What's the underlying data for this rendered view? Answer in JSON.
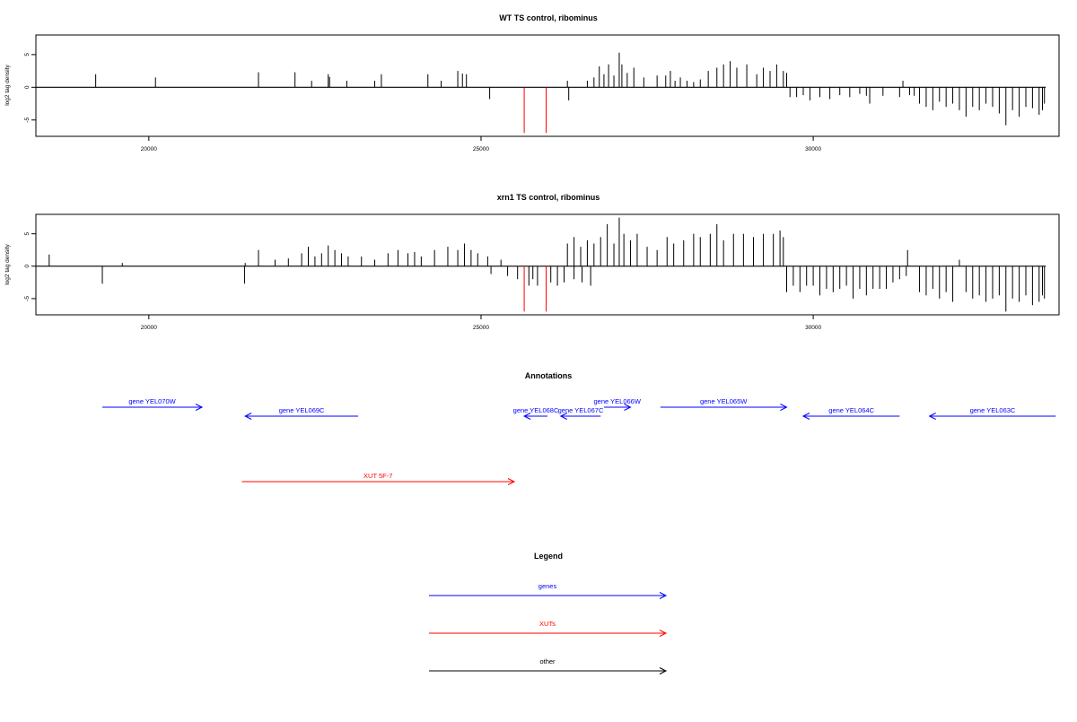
{
  "colors": {
    "gene": "#0000ff",
    "xut": "#ff0000",
    "other": "#000000",
    "positive": "#000000",
    "highlight": "#ff0000"
  },
  "chart_data": [
    {
      "type": "bar",
      "title": "WT TS control, ribominus",
      "ylabel": "log2 tag density",
      "xlim": [
        18300,
        33700
      ],
      "ylim": [
        -7.5,
        8
      ],
      "xticks": [
        20000,
        25000,
        30000
      ],
      "xtick_labels": [
        "20000",
        "25000",
        "30000"
      ],
      "yticks": [
        -5,
        0,
        5
      ],
      "ytick_labels": [
        "-5",
        "0",
        "5"
      ],
      "baseline": [
        18300,
        33500
      ],
      "bars": [
        [
          19200,
          2
        ],
        [
          20100,
          1.5
        ],
        [
          21650,
          2.3
        ],
        [
          22200,
          2.3
        ],
        [
          22450,
          1
        ],
        [
          22700,
          2
        ],
        [
          22720,
          1.6
        ],
        [
          22980,
          1
        ],
        [
          23400,
          1
        ],
        [
          23500,
          2
        ],
        [
          24200,
          2
        ],
        [
          24400,
          1
        ],
        [
          24650,
          2.5
        ],
        [
          24720,
          2.1
        ],
        [
          24780,
          2
        ],
        [
          25130,
          -1.8
        ],
        [
          26300,
          1
        ],
        [
          26320,
          -2
        ],
        [
          26600,
          1
        ],
        [
          26700,
          1.5
        ],
        [
          26780,
          3.2
        ],
        [
          26850,
          2
        ],
        [
          26920,
          3.5
        ],
        [
          27000,
          1.8
        ],
        [
          27080,
          5.3
        ],
        [
          27120,
          3.5
        ],
        [
          27200,
          2.2
        ],
        [
          27300,
          3
        ],
        [
          27450,
          1.5
        ],
        [
          27650,
          1.8
        ],
        [
          27780,
          1.8
        ],
        [
          27850,
          2.5
        ],
        [
          27920,
          1
        ],
        [
          28000,
          1.5
        ],
        [
          28100,
          1
        ],
        [
          28200,
          0.8
        ],
        [
          28300,
          1.2
        ],
        [
          28420,
          2.5
        ],
        [
          28550,
          3
        ],
        [
          28650,
          3.5
        ],
        [
          28750,
          4
        ],
        [
          28850,
          3
        ],
        [
          29000,
          3.5
        ],
        [
          29150,
          2
        ],
        [
          29250,
          3
        ],
        [
          29350,
          2.5
        ],
        [
          29450,
          3.5
        ],
        [
          29550,
          2.5
        ],
        [
          29600,
          2.2
        ],
        [
          29650,
          -1.5
        ],
        [
          29750,
          -1.5
        ],
        [
          29850,
          -1.2
        ],
        [
          29950,
          -2
        ],
        [
          30100,
          -1.5
        ],
        [
          30250,
          -1.8
        ],
        [
          30400,
          -1.2
        ],
        [
          30550,
          -1.5
        ],
        [
          30700,
          -1
        ],
        [
          30800,
          -1.3
        ],
        [
          30850,
          -2.5
        ],
        [
          31050,
          -1.3
        ],
        [
          31300,
          -1.5
        ],
        [
          31350,
          1
        ],
        [
          31450,
          -1.2
        ],
        [
          31520,
          -1.3
        ],
        [
          31600,
          -2.5
        ],
        [
          31700,
          -3
        ],
        [
          31800,
          -3.5
        ],
        [
          31900,
          -2.2
        ],
        [
          32000,
          -3
        ],
        [
          32100,
          -2.5
        ],
        [
          32200,
          -3.5
        ],
        [
          32300,
          -4.5
        ],
        [
          32400,
          -3
        ],
        [
          32500,
          -3.5
        ],
        [
          32600,
          -2.5
        ],
        [
          32700,
          -3
        ],
        [
          32800,
          -4
        ],
        [
          32900,
          -5.8
        ],
        [
          33000,
          -3.5
        ],
        [
          33100,
          -4.5
        ],
        [
          33200,
          -3
        ],
        [
          33300,
          -3.2
        ],
        [
          33400,
          -4.2
        ],
        [
          33450,
          -3.5
        ],
        [
          33480,
          -2.5
        ]
      ],
      "highlight_bars": [
        [
          25650,
          -7
        ],
        [
          25980,
          -7
        ]
      ]
    },
    {
      "type": "bar",
      "title": "xrn1 TS control, ribominus",
      "ylabel": "log2 tag density",
      "xlim": [
        18300,
        33700
      ],
      "ylim": [
        -7.5,
        8
      ],
      "xticks": [
        20000,
        25000,
        30000
      ],
      "xtick_labels": [
        "20000",
        "25000",
        "30000"
      ],
      "yticks": [
        -5,
        0,
        5
      ],
      "ytick_labels": [
        "-5",
        "0",
        "5"
      ],
      "baseline": [
        18300,
        33500
      ],
      "bars": [
        [
          18500,
          1.8
        ],
        [
          19300,
          -2.7
        ],
        [
          19600,
          0.5
        ],
        [
          21450,
          0.5
        ],
        [
          21440,
          -2.7
        ],
        [
          21650,
          2.5
        ],
        [
          21900,
          1
        ],
        [
          22100,
          1.2
        ],
        [
          22300,
          2
        ],
        [
          22400,
          3
        ],
        [
          22500,
          1.5
        ],
        [
          22600,
          2
        ],
        [
          22700,
          3.2
        ],
        [
          22800,
          2.5
        ],
        [
          22900,
          2
        ],
        [
          23000,
          1.5
        ],
        [
          23200,
          1.5
        ],
        [
          23400,
          1
        ],
        [
          23600,
          2
        ],
        [
          23750,
          2.5
        ],
        [
          23900,
          2
        ],
        [
          24000,
          2.2
        ],
        [
          24100,
          1.5
        ],
        [
          24300,
          2.5
        ],
        [
          24500,
          3
        ],
        [
          24650,
          2.5
        ],
        [
          24750,
          3.5
        ],
        [
          24850,
          2.5
        ],
        [
          24950,
          2
        ],
        [
          25100,
          1.5
        ],
        [
          25150,
          -1.2
        ],
        [
          25300,
          1
        ],
        [
          25400,
          -1.5
        ],
        [
          25550,
          -2
        ],
        [
          25720,
          -3
        ],
        [
          25780,
          -2
        ],
        [
          25850,
          -3
        ],
        [
          26050,
          -2.5
        ],
        [
          26150,
          -3
        ],
        [
          26250,
          -2.5
        ],
        [
          26400,
          -2
        ],
        [
          26520,
          -2.5
        ],
        [
          26650,
          -3
        ],
        [
          26300,
          3.5
        ],
        [
          26400,
          4.5
        ],
        [
          26500,
          3
        ],
        [
          26600,
          4
        ],
        [
          26700,
          3.5
        ],
        [
          26800,
          4.5
        ],
        [
          26900,
          6.5
        ],
        [
          27000,
          3.5
        ],
        [
          27080,
          7.5
        ],
        [
          27150,
          5
        ],
        [
          27250,
          4
        ],
        [
          27350,
          5
        ],
        [
          27500,
          3
        ],
        [
          27650,
          2.5
        ],
        [
          27800,
          4.5
        ],
        [
          27900,
          3.5
        ],
        [
          28050,
          4
        ],
        [
          28200,
          5
        ],
        [
          28300,
          4.5
        ],
        [
          28450,
          5
        ],
        [
          28550,
          6.5
        ],
        [
          28650,
          4
        ],
        [
          28800,
          5
        ],
        [
          28950,
          5
        ],
        [
          29100,
          4.5
        ],
        [
          29250,
          5
        ],
        [
          29400,
          5
        ],
        [
          29500,
          5.5
        ],
        [
          29550,
          4.5
        ],
        [
          29600,
          -4
        ],
        [
          29700,
          -3
        ],
        [
          29800,
          -4
        ],
        [
          29900,
          -3
        ],
        [
          30000,
          -3
        ],
        [
          30100,
          -4.5
        ],
        [
          30200,
          -3.5
        ],
        [
          30300,
          -4
        ],
        [
          30400,
          -3.5
        ],
        [
          30500,
          -3
        ],
        [
          30600,
          -5
        ],
        [
          30700,
          -3.5
        ],
        [
          30800,
          -4.5
        ],
        [
          30900,
          -3.5
        ],
        [
          31000,
          -3.5
        ],
        [
          31100,
          -3.5
        ],
        [
          31200,
          -2.5
        ],
        [
          31300,
          -2
        ],
        [
          31420,
          2.5
        ],
        [
          31400,
          -1.5
        ],
        [
          31600,
          -4
        ],
        [
          31700,
          -4.5
        ],
        [
          31800,
          -3.5
        ],
        [
          31900,
          -5
        ],
        [
          32000,
          -4
        ],
        [
          32100,
          -5.5
        ],
        [
          32200,
          1
        ],
        [
          32300,
          -4
        ],
        [
          32400,
          -5
        ],
        [
          32500,
          -4.5
        ],
        [
          32600,
          -5.5
        ],
        [
          32700,
          -5
        ],
        [
          32800,
          -4.5
        ],
        [
          32900,
          -7
        ],
        [
          33000,
          -5
        ],
        [
          33100,
          -5.5
        ],
        [
          33200,
          -4.5
        ],
        [
          33300,
          -6
        ],
        [
          33400,
          -5.5
        ],
        [
          33450,
          -4.5
        ],
        [
          33480,
          -5
        ]
      ],
      "highlight_bars": [
        [
          25650,
          -7
        ],
        [
          25980,
          -7
        ]
      ]
    }
  ],
  "annotations": {
    "title": "Annotations",
    "genes": [
      {
        "label": "gene YEL070W",
        "start": 19300,
        "end": 20800,
        "strand": "+",
        "row": 0
      },
      {
        "label": "gene YEL069C",
        "start": 21450,
        "end": 23150,
        "strand": "-",
        "row": 1
      },
      {
        "label": "gene YEL068C",
        "start": 25650,
        "end": 26000,
        "strand": "-",
        "row": 1
      },
      {
        "label": "gene YEL067C",
        "start": 26200,
        "end": 26800,
        "strand": "-",
        "row": 1
      },
      {
        "label": "gene YEL066W",
        "start": 26850,
        "end": 27250,
        "strand": "+",
        "row": 0
      },
      {
        "label": "gene YEL065W",
        "start": 27700,
        "end": 29600,
        "strand": "+",
        "row": 0
      },
      {
        "label": "gene YEL064C",
        "start": 29850,
        "end": 31300,
        "strand": "-",
        "row": 1
      },
      {
        "label": "gene YEL063C",
        "start": 31750,
        "end": 33650,
        "strand": "-",
        "row": 1
      }
    ],
    "xuts": [
      {
        "label": "XUT 5F-7",
        "start": 21400,
        "end": 25500,
        "strand": "+"
      }
    ]
  },
  "legend": {
    "title": "Legend",
    "items": [
      {
        "label": "genes",
        "type": "gene"
      },
      {
        "label": "XUTs",
        "type": "xut"
      },
      {
        "label": "other",
        "type": "other"
      }
    ]
  }
}
